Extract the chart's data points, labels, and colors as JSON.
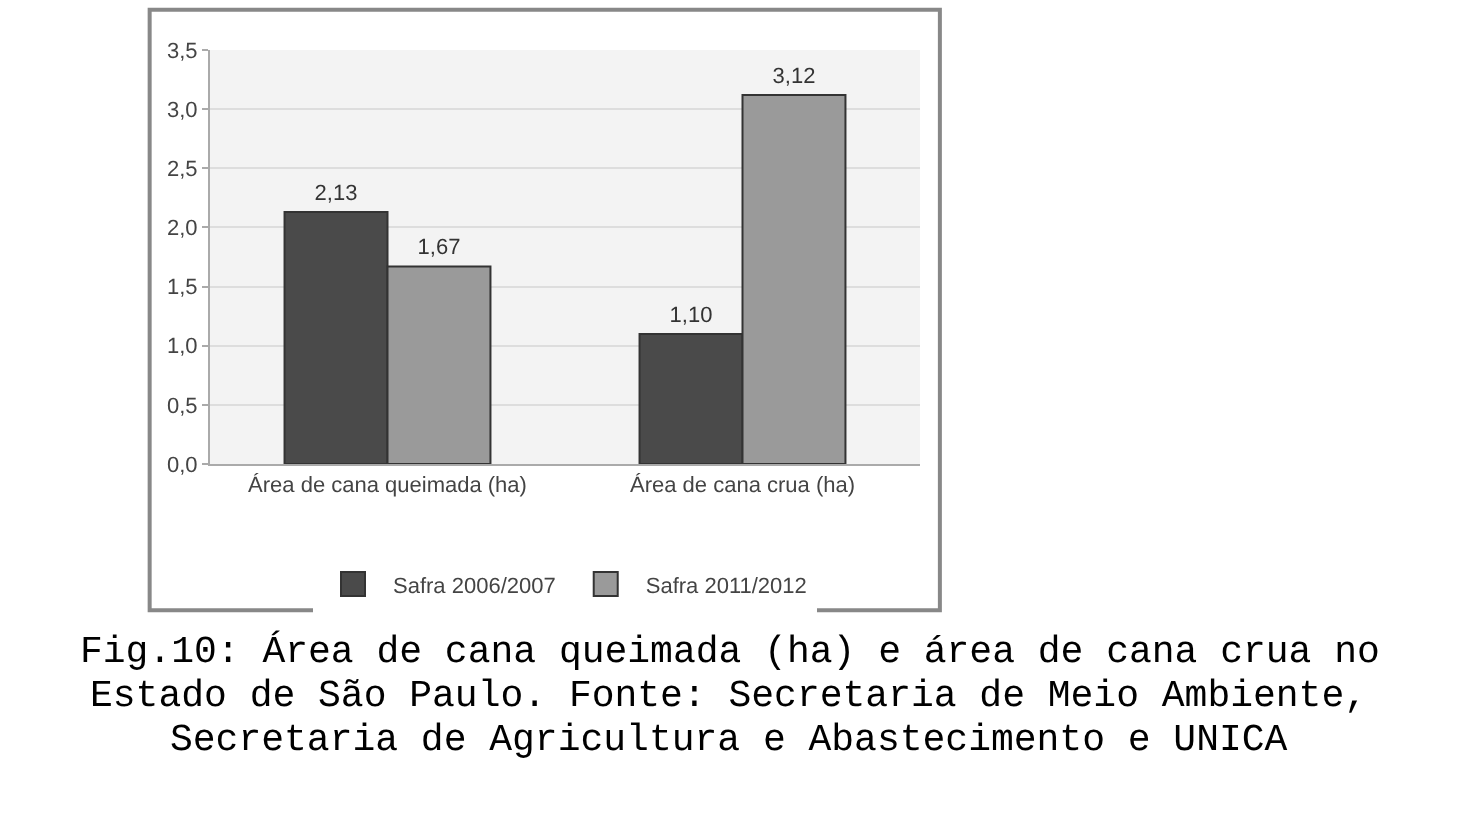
{
  "chart_data": {
    "type": "bar",
    "categories": [
      "Área de cana queimada (ha)",
      "Área de cana crua (ha)"
    ],
    "series": [
      {
        "name": "Safra 2006/2007",
        "color": "#4a4a4a",
        "values": [
          2.13,
          1.1
        ],
        "value_labels": [
          "2,13",
          "1,10"
        ]
      },
      {
        "name": "Safra 2011/2012",
        "color": "#9a9a9a",
        "values": [
          1.67,
          3.12
        ],
        "value_labels": [
          "1,67",
          "3,12"
        ]
      }
    ],
    "ylim": [
      0,
      3.5
    ],
    "yticks": [
      {
        "value": 0,
        "label": "0,0"
      },
      {
        "value": 0.5,
        "label": "0,5"
      },
      {
        "value": 1,
        "label": "1,0"
      },
      {
        "value": 1.5,
        "label": "1,5"
      },
      {
        "value": 2,
        "label": "2,0"
      },
      {
        "value": 2.5,
        "label": "2,5"
      },
      {
        "value": 3,
        "label": "3,0"
      },
      {
        "value": 3.5,
        "label": "3,5"
      }
    ],
    "grid": "y",
    "legend": "bottom",
    "annotations": [
      "Fig.10: Área de cana queimada (ha) e área de cana crua no",
      "Estado de São Paulo. Fonte: Secretaria de Meio Ambiente,",
      "Secretaria de Agricultura e Abastecimento e UNICA"
    ]
  }
}
